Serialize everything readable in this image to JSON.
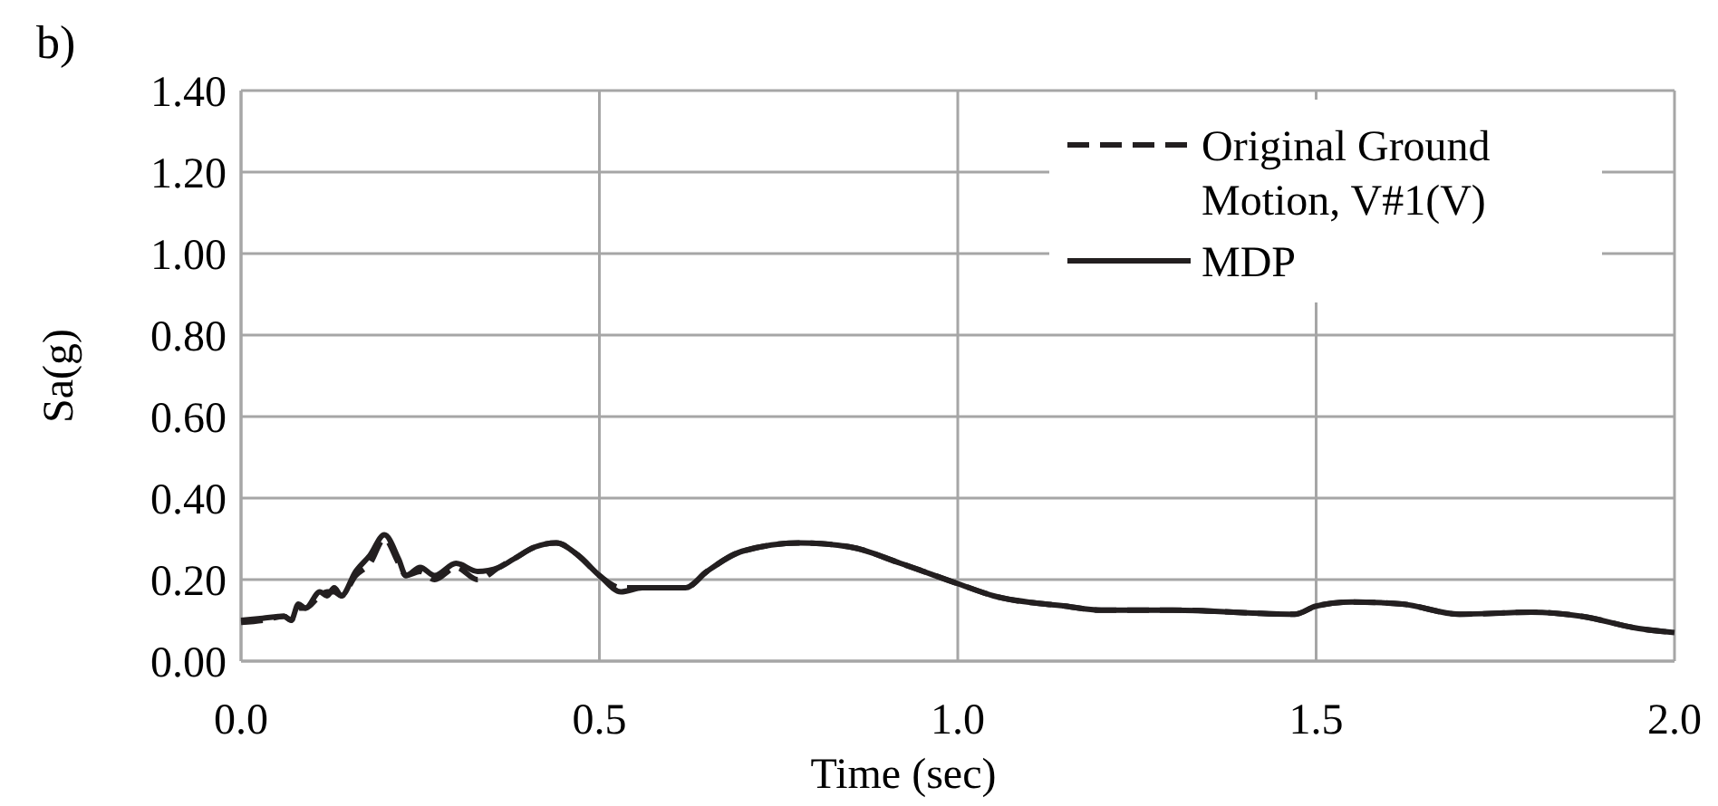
{
  "chart_data": {
    "type": "line",
    "title": "b)",
    "xlabel": "Time (sec)",
    "ylabel": "Sa(g)",
    "xlim": [
      0,
      2
    ],
    "xticks": [
      {
        "value": 0,
        "label": "0.0"
      },
      {
        "value": 0.5,
        "label": "0.5"
      },
      {
        "value": 1,
        "label": "1.0"
      },
      {
        "value": 1.5,
        "label": "1.5"
      },
      {
        "value": 2,
        "label": "2.0"
      }
    ],
    "ylim": [
      0,
      1.4
    ],
    "yticks": [
      {
        "value": 0,
        "label": "0.00"
      },
      {
        "value": 0.2,
        "label": "0.20"
      },
      {
        "value": 0.4,
        "label": "0.40"
      },
      {
        "value": 0.6,
        "label": "0.60"
      },
      {
        "value": 0.8,
        "label": "0.80"
      },
      {
        "value": 1,
        "label": "1.00"
      },
      {
        "value": 1.2,
        "label": "1.20"
      },
      {
        "value": 1.4,
        "label": "1.40"
      }
    ],
    "grid": true,
    "legend": "top right",
    "marker": "none",
    "series": [
      {
        "name": "Original Ground Motion, V#1(V)",
        "color": "#231f20",
        "line_style": "dashed",
        "x": [
          0,
          0.03,
          0.06,
          0.07,
          0.08,
          0.09,
          0.11,
          0.12,
          0.13,
          0.14,
          0.16,
          0.18,
          0.2,
          0.22,
          0.23,
          0.25,
          0.27,
          0.3,
          0.33,
          0.36,
          0.38,
          0.41,
          0.44,
          0.47,
          0.5,
          0.53,
          0.56,
          0.62,
          0.65,
          0.7,
          0.78,
          0.85,
          0.92,
          1,
          1.05,
          1.15,
          1.2,
          1.3,
          1.47,
          1.5,
          1.55,
          1.62,
          1.7,
          1.8,
          1.87,
          1.95,
          2
        ],
        "values": [
          0.095,
          0.1,
          0.11,
          0.1,
          0.13,
          0.13,
          0.16,
          0.17,
          0.17,
          0.16,
          0.21,
          0.24,
          0.3,
          0.24,
          0.21,
          0.22,
          0.2,
          0.23,
          0.2,
          0.23,
          0.25,
          0.28,
          0.29,
          0.26,
          0.21,
          0.18,
          0.18,
          0.18,
          0.22,
          0.27,
          0.29,
          0.28,
          0.24,
          0.19,
          0.16,
          0.135,
          0.125,
          0.125,
          0.115,
          0.135,
          0.145,
          0.14,
          0.115,
          0.12,
          0.11,
          0.08,
          0.07
        ]
      },
      {
        "name": "MDP",
        "color": "#231f20",
        "line_style": "solid",
        "x": [
          0,
          0.03,
          0.06,
          0.07,
          0.08,
          0.09,
          0.11,
          0.12,
          0.13,
          0.14,
          0.16,
          0.18,
          0.2,
          0.22,
          0.23,
          0.25,
          0.27,
          0.3,
          0.33,
          0.36,
          0.38,
          0.41,
          0.44,
          0.47,
          0.5,
          0.53,
          0.56,
          0.62,
          0.65,
          0.7,
          0.78,
          0.85,
          0.92,
          1,
          1.05,
          1.15,
          1.2,
          1.3,
          1.47,
          1.5,
          1.55,
          1.62,
          1.7,
          1.8,
          1.87,
          1.95,
          2
        ],
        "values": [
          0.1,
          0.105,
          0.11,
          0.1,
          0.14,
          0.13,
          0.17,
          0.16,
          0.18,
          0.16,
          0.22,
          0.26,
          0.31,
          0.25,
          0.21,
          0.23,
          0.21,
          0.24,
          0.22,
          0.23,
          0.25,
          0.28,
          0.29,
          0.26,
          0.21,
          0.17,
          0.18,
          0.18,
          0.22,
          0.27,
          0.29,
          0.28,
          0.24,
          0.19,
          0.16,
          0.135,
          0.125,
          0.125,
          0.115,
          0.135,
          0.145,
          0.14,
          0.115,
          0.12,
          0.11,
          0.08,
          0.07
        ]
      }
    ]
  }
}
